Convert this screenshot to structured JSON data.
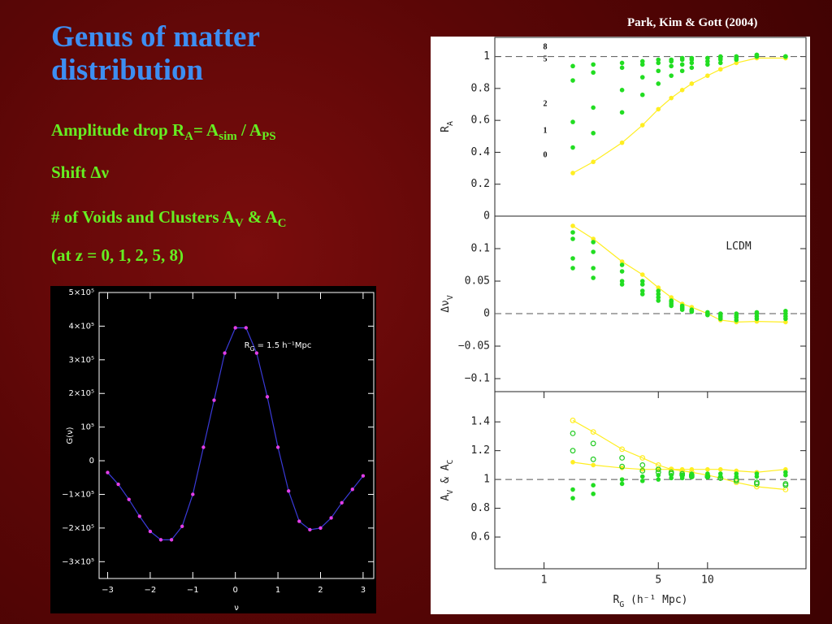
{
  "slide": {
    "title": "Genus of matter distribution",
    "credit": "Park, Kim & Gott (2004)",
    "bullets": [
      [
        "Amplitude drop R",
        "A",
        "= A",
        "sim",
        " / A",
        "PS"
      ],
      [
        "Shift Δν"
      ],
      [
        "# of Voids and Clusters A",
        "V",
        " & A",
        "C"
      ],
      [
        "(at z = 0, 1, 2, 5, 8)"
      ]
    ]
  },
  "chart_data": [
    {
      "type": "line",
      "xlabel": "ν",
      "ylabel": "G(ν)",
      "annotation": [
        "R",
        "G",
        " = 1.5 h⁻¹Mpc"
      ],
      "x": [
        -3,
        -2.75,
        -2.5,
        -2.25,
        -2,
        -1.75,
        -1.5,
        -1.25,
        -1,
        -0.75,
        -0.5,
        -0.25,
        0,
        0.25,
        0.5,
        0.75,
        1,
        1.25,
        1.5,
        1.75,
        2,
        2.25,
        2.5,
        2.75,
        3
      ],
      "series": [
        {
          "color": "#3a3ad8",
          "marker_color": "#e23ee8",
          "values": [
            -35000,
            -70000,
            -115000,
            -165000,
            -210000,
            -235000,
            -235000,
            -195000,
            -100000,
            40000,
            180000,
            320000,
            395000,
            395000,
            320000,
            190000,
            40000,
            -90000,
            -180000,
            -205000,
            -200000,
            -170000,
            -125000,
            -85000,
            -45000
          ]
        }
      ],
      "xlim": [
        -3.2,
        3.25
      ],
      "xticks": [
        {
          "value": -3,
          "label": "−3"
        },
        {
          "value": -2,
          "label": "−2"
        },
        {
          "value": -1,
          "label": "−1"
        },
        0,
        1,
        2,
        3
      ],
      "ylim": [
        -350000,
        500000
      ],
      "yticks": [
        {
          "value": -300000,
          "label": "−3×10⁵"
        },
        {
          "value": -200000,
          "label": "−2×10⁵"
        },
        {
          "value": -100000,
          "label": "−1×10⁵"
        },
        0,
        {
          "value": 100000,
          "label": "10⁵"
        },
        {
          "value": 200000,
          "label": "2×10⁵"
        },
        {
          "value": 300000,
          "label": "3×10⁵"
        },
        {
          "value": 400000,
          "label": "4×10⁵"
        },
        {
          "value": 500000,
          "label": "5×10⁵"
        }
      ]
    },
    {
      "type": "scatter",
      "xlog": true,
      "ylabel": [
        "R",
        "A"
      ],
      "hline": 1,
      "x": [
        1.5,
        2,
        3,
        4,
        5,
        6,
        7,
        8,
        10,
        12,
        15,
        20,
        30
      ],
      "xlim": [
        0.5,
        40
      ],
      "ylim": [
        0,
        1.12
      ],
      "yticks": [
        0,
        0.2,
        0.4,
        0.6,
        0.8,
        1
      ],
      "series": [
        {
          "name": "0",
          "color": "#ffee22",
          "line": true,
          "values": [
            0.27,
            0.34,
            0.46,
            0.57,
            0.67,
            0.74,
            0.79,
            0.83,
            0.88,
            0.92,
            0.96,
            0.99,
            0.99
          ]
        },
        {
          "name": "1",
          "color": "#22dd22",
          "values": [
            0.43,
            0.52,
            0.65,
            0.76,
            0.83,
            0.88,
            0.91,
            0.93,
            0.95,
            0.96,
            0.98,
            1.0,
            1.0
          ]
        },
        {
          "name": "2",
          "color": "#22dd22",
          "values": [
            0.59,
            0.68,
            0.79,
            0.87,
            0.91,
            0.94,
            0.95,
            0.96,
            0.97,
            0.98,
            0.99,
            1.0,
            1.0
          ]
        },
        {
          "name": "5",
          "color": "#22dd22",
          "values": [
            0.85,
            0.9,
            0.93,
            0.95,
            0.96,
            0.97,
            0.98,
            0.98,
            0.99,
            0.99,
            1.0,
            1.01,
            1.0
          ]
        },
        {
          "name": "8",
          "color": "#22dd22",
          "values": [
            0.94,
            0.95,
            0.96,
            0.97,
            0.98,
            0.98,
            0.99,
            0.99,
            0.99,
            1.0,
            1.0,
            1.01,
            1.0
          ]
        }
      ]
    },
    {
      "type": "scatter",
      "xlog": true,
      "ylabel": [
        "Δν",
        "V"
      ],
      "annotation": [
        "LCDM"
      ],
      "hline": 0,
      "x": [
        1.5,
        2,
        3,
        4,
        5,
        6,
        7,
        8,
        10,
        12,
        15,
        20,
        30
      ],
      "xlim": [
        0.5,
        40
      ],
      "ylim": [
        -0.12,
        0.15
      ],
      "yticks": [
        {
          "value": -0.1,
          "label": "−0.1"
        },
        {
          "value": -0.05,
          "label": "−0.05"
        },
        0,
        0.05,
        0.1
      ],
      "series": [
        {
          "color": "#ffee22",
          "line": true,
          "values": [
            0.135,
            0.115,
            0.08,
            0.06,
            0.04,
            0.025,
            0.015,
            0.01,
            0.0,
            -0.01,
            -0.013,
            -0.012,
            -0.013
          ]
        },
        {
          "color": "#22dd22",
          "values": [
            0.125,
            0.11,
            0.075,
            0.05,
            0.035,
            0.02,
            0.012,
            0.006,
            -0.002,
            -0.008,
            -0.01,
            -0.008,
            -0.008
          ]
        },
        {
          "color": "#22dd22",
          "values": [
            0.115,
            0.095,
            0.065,
            0.045,
            0.03,
            0.018,
            0.01,
            0.005,
            -0.002,
            -0.005,
            -0.006,
            -0.004,
            -0.004
          ]
        },
        {
          "color": "#22dd22",
          "values": [
            0.085,
            0.07,
            0.05,
            0.035,
            0.025,
            0.015,
            0.008,
            0.004,
            0.0,
            -0.003,
            -0.003,
            0.0,
            0.0
          ]
        },
        {
          "color": "#22dd22",
          "values": [
            0.07,
            0.055,
            0.045,
            0.03,
            0.02,
            0.012,
            0.006,
            0.003,
            0.002,
            0.0,
            0.0,
            0.002,
            0.004
          ]
        }
      ]
    },
    {
      "type": "scatter",
      "xlog": true,
      "ylabel": [
        "A",
        "V",
        " & A",
        "C"
      ],
      "xlabel": [
        "R",
        "G",
        " (h⁻¹ Mpc)"
      ],
      "hline": 1,
      "x": [
        1.5,
        2,
        3,
        4,
        5,
        6,
        7,
        8,
        10,
        12,
        15,
        20,
        30
      ],
      "xlim": [
        0.5,
        40
      ],
      "ylim": [
        0.38,
        1.61
      ],
      "xticks": [
        1,
        5,
        10
      ],
      "yticks": [
        0.6,
        0.8,
        1,
        1.2,
        1.4
      ],
      "series": [
        {
          "color": "#ffee22",
          "line": true,
          "marker": "open",
          "values": [
            1.41,
            1.33,
            1.21,
            1.15,
            1.1,
            1.07,
            1.06,
            1.05,
            1.03,
            1.01,
            0.98,
            0.95,
            0.93
          ]
        },
        {
          "color": "#ffee22",
          "line": true,
          "marker": "filled",
          "values": [
            1.12,
            1.1,
            1.08,
            1.07,
            1.07,
            1.07,
            1.07,
            1.07,
            1.07,
            1.07,
            1.06,
            1.05,
            1.07
          ]
        },
        {
          "color": "#22cc22",
          "marker": "open",
          "values": [
            1.32,
            1.25,
            1.15,
            1.1,
            1.07,
            1.05,
            1.04,
            1.03,
            1.02,
            1.01,
            0.99,
            0.97,
            0.96
          ]
        },
        {
          "color": "#22cc22",
          "marker": "open",
          "values": [
            1.2,
            1.14,
            1.09,
            1.06,
            1.05,
            1.04,
            1.03,
            1.02,
            1.02,
            1.01,
            1.0,
            0.98,
            0.97
          ]
        },
        {
          "color": "#22dd22",
          "marker": "filled",
          "values": [
            0.93,
            0.96,
            1.0,
            1.02,
            1.03,
            1.03,
            1.03,
            1.04,
            1.04,
            1.04,
            1.04,
            1.04,
            1.05
          ]
        },
        {
          "color": "#22dd22",
          "marker": "filled",
          "values": [
            0.87,
            0.9,
            0.97,
            0.99,
            1.0,
            1.01,
            1.01,
            1.02,
            1.02,
            1.02,
            1.02,
            1.02,
            1.03
          ]
        }
      ]
    }
  ]
}
